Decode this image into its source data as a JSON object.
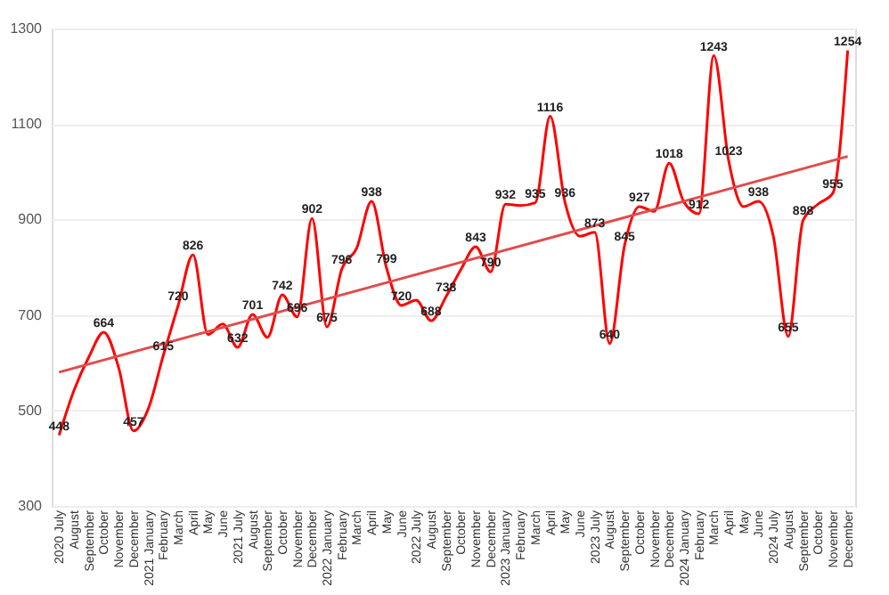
{
  "chart_data": {
    "type": "line",
    "categories": [
      "2020 July",
      "August",
      "September",
      "October",
      "November",
      "December",
      "2021 January",
      "February",
      "March",
      "April",
      "May",
      "June",
      "2021 July",
      "August",
      "September",
      "October",
      "November",
      "December",
      "2022 January",
      "February",
      "March",
      "April",
      "May",
      "June",
      "2022 July",
      "August",
      "September",
      "October",
      "November",
      "December",
      "2023 January",
      "February",
      "March",
      "April",
      "May",
      "June",
      "2023 July",
      "August",
      "September",
      "October",
      "November",
      "December",
      "2024 January",
      "February",
      "March",
      "April",
      "May",
      "June",
      "2024 July",
      "August",
      "September",
      "October",
      "November",
      "December"
    ],
    "series": [
      {
        "color": "#ff0000",
        "values": [
          448,
          542,
          612,
          664,
          590,
          457,
          504,
          615,
          720,
          826,
          659,
          681,
          632,
          701,
          653,
          742,
          696,
          902,
          675,
          796,
          840,
          938,
          799,
          720,
          731,
          688,
          738,
          795,
          843,
          790,
          932,
          929,
          935,
          1116,
          936,
          865,
          873,
          640,
          845,
          927,
          917,
          1018,
          936,
          912,
          1243,
          1023,
          927,
          938,
          865,
          655,
          898,
          932,
          955,
          1254
        ],
        "value_labels": [
          "448",
          null,
          null,
          "664",
          null,
          "457",
          null,
          "615",
          "720",
          "826",
          null,
          null,
          "632",
          "701",
          null,
          "742",
          "696",
          "902",
          "675",
          "796",
          null,
          "938",
          "799",
          "720",
          null,
          "688",
          "738",
          null,
          "843",
          "790",
          "932",
          null,
          "935",
          "1116",
          "936",
          null,
          "873",
          "640",
          "845",
          "927",
          null,
          "1018",
          null,
          "912",
          "1243",
          "1023",
          null,
          "938",
          null,
          "655",
          "898",
          null,
          "955",
          "1254"
        ]
      },
      {
        "type": "line",
        "color": "#e34a4a",
        "values": [
          580,
          null,
          null,
          null,
          null,
          null,
          null,
          null,
          null,
          null,
          null,
          null,
          null,
          null,
          null,
          null,
          null,
          null,
          null,
          null,
          null,
          null,
          null,
          null,
          null,
          null,
          null,
          null,
          null,
          null,
          null,
          null,
          null,
          null,
          null,
          null,
          null,
          null,
          null,
          null,
          null,
          null,
          null,
          null,
          null,
          null,
          null,
          null,
          null,
          null,
          null,
          null,
          null,
          1032
        ]
      }
    ],
    "ylim": [
      300,
      1300
    ],
    "yticks": [
      300,
      500,
      700,
      900,
      1100,
      1300
    ],
    "grid": "y",
    "marker": "none",
    "line_style": "solid"
  }
}
